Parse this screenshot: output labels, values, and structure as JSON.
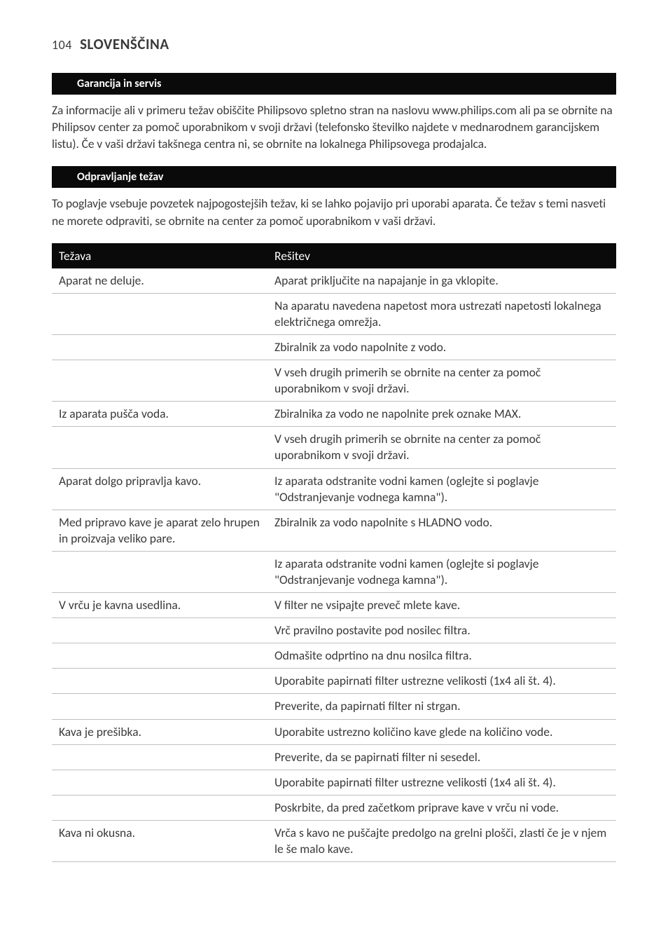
{
  "page": {
    "number": "104",
    "language": "SLOVENŠČINA"
  },
  "sections": {
    "warranty": {
      "title": "Garancija in servis",
      "body": "Za informacije ali v primeru težav obiščite Philipsovo spletno stran na naslovu www.philips.com ali pa se obrnite na Philipsov center za pomoč uporabnikom v svoji državi (telefonsko številko najdete v mednarodnem garancijskem listu). Če v vaši državi takšnega centra ni, se obrnite na lokalnega Philipsovega prodajalca."
    },
    "troubleshooting": {
      "title": "Odpravljanje težav",
      "body": "To poglavje vsebuje povzetek najpogostejših težav, ki se lahko pojavijo pri uporabi aparata. Če težav s temi nasveti ne morete odpraviti, se obrnite na center za pomoč uporabnikom v vaši državi.",
      "columns": [
        "Težava",
        "Rešitev"
      ],
      "rows": [
        {
          "problem": "Aparat ne deluje.",
          "solution": "Aparat priključite na napajanje in ga vklopite."
        },
        {
          "problem": "",
          "solution": "Na aparatu navedena napetost mora ustrezati napetosti lokalnega električnega omrežja."
        },
        {
          "problem": "",
          "solution": "Zbiralnik za vodo napolnite z vodo."
        },
        {
          "problem": "",
          "solution": "V vseh drugih primerih se obrnite na center za pomoč uporabnikom v svoji državi."
        },
        {
          "problem": "Iz aparata pušča voda.",
          "solution": "Zbiralnika za vodo ne napolnite prek oznake MAX."
        },
        {
          "problem": "",
          "solution": "V vseh drugih primerih se obrnite na center za pomoč uporabnikom v svoji državi."
        },
        {
          "problem": "Aparat dolgo pripravlja kavo.",
          "solution": "Iz aparata odstranite vodni kamen (oglejte si poglavje \"Odstranjevanje vodnega kamna\")."
        },
        {
          "problem": "Med pripravo kave je aparat zelo hrupen in proizvaja veliko pare.",
          "solution": "Zbiralnik za vodo napolnite s HLADNO vodo."
        },
        {
          "problem": "",
          "solution": "Iz aparata odstranite vodni kamen (oglejte si poglavje \"Odstranjevanje vodnega kamna\")."
        },
        {
          "problem": "V vrču je kavna usedlina.",
          "solution": "V filter ne vsipajte preveč mlete kave."
        },
        {
          "problem": "",
          "solution": "Vrč pravilno postavite pod nosilec filtra."
        },
        {
          "problem": "",
          "solution": "Odmašite odprtino na dnu nosilca filtra."
        },
        {
          "problem": "",
          "solution": "Uporabite papirnati filter ustrezne velikosti (1x4 ali št. 4)."
        },
        {
          "problem": "",
          "solution": "Preverite, da papirnati filter ni strgan."
        },
        {
          "problem": "Kava je prešibka.",
          "solution": "Uporabite ustrezno količino kave glede na količino vode."
        },
        {
          "problem": "",
          "solution": "Preverite, da se papirnati filter ni sesedel."
        },
        {
          "problem": "",
          "solution": "Uporabite papirnati filter ustrezne velikosti (1x4 ali št. 4)."
        },
        {
          "problem": "",
          "solution": "Poskrbite, da pred začetkom priprave kave v vrču ni vode."
        },
        {
          "problem": "Kava ni okusna.",
          "solution": "Vrča s kavo ne puščajte predolgo na grelni plošči, zlasti če je v njem le še malo kave."
        }
      ]
    }
  }
}
